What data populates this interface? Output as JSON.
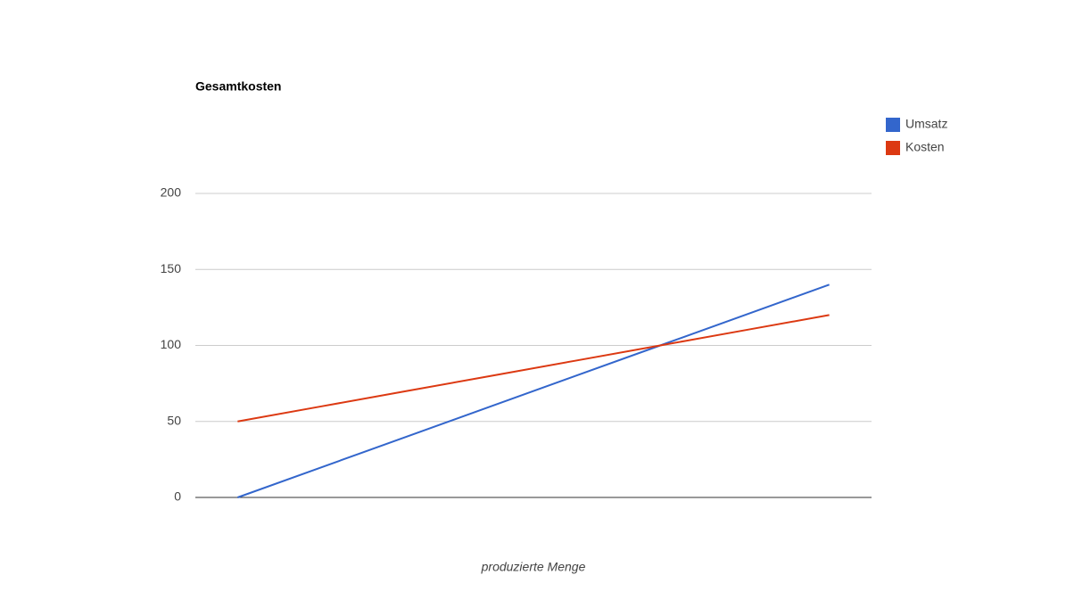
{
  "chart_data": {
    "type": "line",
    "title": "Gesamtkosten",
    "x_label": "produzierte Menge",
    "categories": [
      null,
      null,
      null,
      null,
      null,
      null,
      null,
      null
    ],
    "series": [
      {
        "name": "Umsatz",
        "color": "#3366cc",
        "values": [
          0,
          20,
          40,
          60,
          80,
          100,
          120,
          140
        ]
      },
      {
        "name": "Kosten",
        "color": "#dc3912",
        "values": [
          50,
          60,
          70,
          80,
          90,
          100,
          110,
          120
        ]
      }
    ],
    "ylim": [
      0,
      200
    ],
    "yticks": [
      0,
      50,
      100,
      150,
      200
    ],
    "grid": true,
    "legend": "right"
  }
}
